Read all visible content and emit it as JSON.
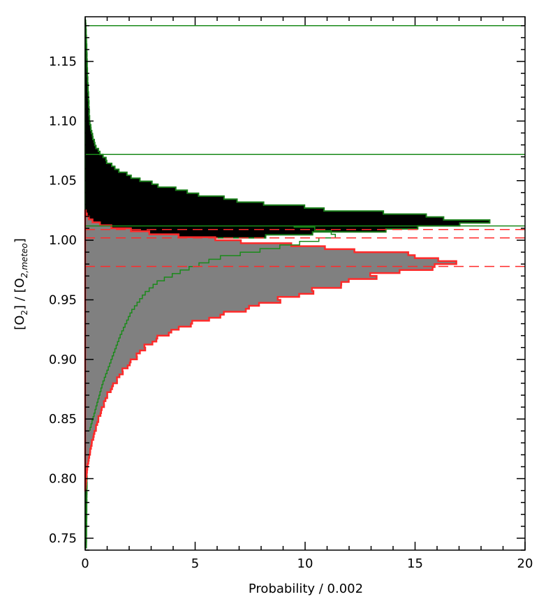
{
  "chart_data": {
    "type": "histogram",
    "orientation": "horizontal",
    "xlabel": "Probability / 0.002",
    "ylabel": {
      "open1": "[O",
      "sub1": "2",
      "mid": "] / [O",
      "sub2": "2,meteo",
      "close": "]"
    },
    "xlim": [
      0,
      20
    ],
    "ylim": [
      0.74,
      1.1875
    ],
    "xticks": [
      0,
      5,
      10,
      15,
      20
    ],
    "yticks": [
      0.75,
      0.8,
      0.85,
      0.9,
      0.95,
      1.0,
      1.05,
      1.1,
      1.15
    ],
    "ytick_labels": [
      "0.75",
      "0.80",
      "0.85",
      "0.90",
      "0.95",
      "1.00",
      "1.05",
      "1.10",
      "1.15"
    ],
    "xtick_labels": [
      "0",
      "5",
      "10",
      "15",
      "20"
    ],
    "colors": {
      "black_fill": "#000000",
      "black_edge": "#1a7f1a",
      "gray_fill": "#808080",
      "gray_edge": "#ff2a2a",
      "green_line": "#1a8a1a",
      "red_line": "#ff2a2a"
    },
    "series": [
      {
        "style": "black-filled-histogram",
        "profile": [
          [
            0.742,
            0.05
          ],
          [
            0.8,
            0.08
          ],
          [
            0.85,
            0.08
          ],
          [
            0.9,
            0.08
          ],
          [
            0.95,
            0.08
          ],
          [
            0.97,
            0.1
          ],
          [
            0.985,
            0.3
          ],
          [
            0.995,
            1.5
          ],
          [
            1.0,
            4.0
          ],
          [
            1.004,
            9.0
          ],
          [
            1.008,
            13.0
          ],
          [
            1.011,
            15.5
          ],
          [
            1.014,
            18.0
          ],
          [
            1.017,
            17.5
          ],
          [
            1.02,
            16.0
          ],
          [
            1.025,
            11.8
          ],
          [
            1.03,
            8.5
          ],
          [
            1.035,
            6.3
          ],
          [
            1.04,
            4.8
          ],
          [
            1.045,
            3.6
          ],
          [
            1.05,
            2.6
          ],
          [
            1.055,
            1.9
          ],
          [
            1.06,
            1.4
          ],
          [
            1.065,
            1.05
          ],
          [
            1.07,
            0.85
          ],
          [
            1.075,
            0.6
          ],
          [
            1.08,
            0.45
          ],
          [
            1.09,
            0.3
          ],
          [
            1.1,
            0.2
          ],
          [
            1.12,
            0.15
          ],
          [
            1.14,
            0.1
          ],
          [
            1.16,
            0.07
          ],
          [
            1.18,
            0.03
          ],
          [
            1.186,
            0.0
          ]
        ]
      },
      {
        "style": "gray-filled-histogram",
        "profile": [
          [
            0.79,
            0.0
          ],
          [
            0.81,
            0.1
          ],
          [
            0.83,
            0.3
          ],
          [
            0.85,
            0.6
          ],
          [
            0.87,
            1.0
          ],
          [
            0.89,
            1.7
          ],
          [
            0.91,
            2.7
          ],
          [
            0.92,
            3.5
          ],
          [
            0.93,
            4.8
          ],
          [
            0.94,
            6.8
          ],
          [
            0.95,
            8.8
          ],
          [
            0.96,
            11.0
          ],
          [
            0.97,
            13.0
          ],
          [
            0.975,
            14.6
          ],
          [
            0.978,
            16.6
          ],
          [
            0.982,
            16.3
          ],
          [
            0.985,
            16.0
          ],
          [
            0.99,
            13.5
          ],
          [
            0.995,
            10.0
          ],
          [
            1.0,
            6.5
          ],
          [
            1.005,
            3.5
          ],
          [
            1.01,
            1.5
          ],
          [
            1.015,
            0.4
          ],
          [
            1.02,
            0.1
          ],
          [
            1.025,
            0.0
          ]
        ]
      },
      {
        "style": "green-step-line",
        "profile": [
          [
            0.84,
            0.2
          ],
          [
            0.86,
            0.5
          ],
          [
            0.88,
            0.8
          ],
          [
            0.9,
            1.2
          ],
          [
            0.92,
            1.6
          ],
          [
            0.94,
            2.1
          ],
          [
            0.955,
            2.7
          ],
          [
            0.965,
            3.3
          ],
          [
            0.975,
            4.5
          ],
          [
            0.985,
            6.0
          ],
          [
            0.99,
            7.5
          ],
          [
            0.995,
            9.0
          ],
          [
            1.0,
            10.5
          ],
          [
            1.004,
            11.5
          ],
          [
            1.008,
            11.0
          ],
          [
            1.012,
            9.5
          ]
        ]
      }
    ],
    "hlines": [
      {
        "y": 1.18,
        "color": "green",
        "style": "solid"
      },
      {
        "y": 1.072,
        "color": "green",
        "style": "solid"
      },
      {
        "y": 1.012,
        "color": "green",
        "style": "solid"
      },
      {
        "y": 1.009,
        "color": "red",
        "style": "dashed"
      },
      {
        "y": 1.002,
        "color": "red",
        "style": "dashed"
      },
      {
        "y": 0.978,
        "color": "red",
        "style": "dashed"
      }
    ]
  }
}
